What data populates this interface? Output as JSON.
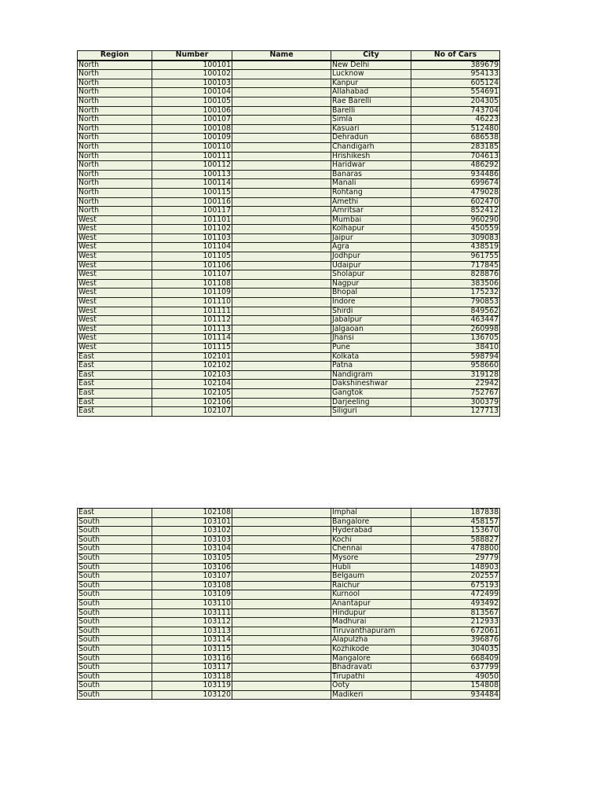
{
  "headers": [
    "Region",
    "Number",
    "Name",
    "City",
    "No of Cars"
  ],
  "table1": [
    [
      "North",
      "100101",
      "",
      "New Delhi",
      "389679"
    ],
    [
      "North",
      "100102",
      "",
      "Lucknow",
      "954133"
    ],
    [
      "North",
      "100103",
      "",
      "Kanpur",
      "605124"
    ],
    [
      "North",
      "100104",
      "",
      "Allahabad",
      "554691"
    ],
    [
      "North",
      "100105",
      "",
      "Rae Barelli",
      "204305"
    ],
    [
      "North",
      "100106",
      "",
      "Barelli",
      "743704"
    ],
    [
      "North",
      "100107",
      "",
      "Simla",
      "46223"
    ],
    [
      "North",
      "100108",
      "",
      "Kasuari",
      "512480"
    ],
    [
      "North",
      "100109",
      "",
      "Dehradun",
      "686538"
    ],
    [
      "North",
      "100110",
      "",
      "Chandigarh",
      "283185"
    ],
    [
      "North",
      "100111",
      "",
      "Hrishikesh",
      "704613"
    ],
    [
      "North",
      "100112",
      "",
      "Haridwar",
      "486292"
    ],
    [
      "North",
      "100113",
      "",
      "Banaras",
      "934486"
    ],
    [
      "North",
      "100114",
      "",
      "Manali",
      "699674"
    ],
    [
      "North",
      "100115",
      "",
      "Rohtang",
      "479028"
    ],
    [
      "North",
      "100116",
      "",
      "Amethi",
      "602470"
    ],
    [
      "North",
      "100117",
      "",
      "Amritsar",
      "852412"
    ],
    [
      "West",
      "101101",
      "",
      "Mumbai",
      "960290"
    ],
    [
      "West",
      "101102",
      "",
      "Kolhapur",
      "450559"
    ],
    [
      "West",
      "101103",
      "",
      "Jaipur",
      "309083"
    ],
    [
      "West",
      "101104",
      "",
      "Agra",
      "438519"
    ],
    [
      "West",
      "101105",
      "",
      "Jodhpur",
      "961755"
    ],
    [
      "West",
      "101106",
      "",
      "Udaipur",
      "717845"
    ],
    [
      "West",
      "101107",
      "",
      "Sholapur",
      "828876"
    ],
    [
      "West",
      "101108",
      "",
      "Nagpur",
      "383506"
    ],
    [
      "West",
      "101109",
      "",
      "Bhopal",
      "175232"
    ],
    [
      "West",
      "101110",
      "",
      "Indore",
      "790853"
    ],
    [
      "West",
      "101111",
      "",
      "Shirdi",
      "849562"
    ],
    [
      "West",
      "101112",
      "",
      "Jabalpur",
      "463447"
    ],
    [
      "West",
      "101113",
      "",
      "Jalgaoan",
      "260998"
    ],
    [
      "West",
      "101114",
      "",
      "Jhansi",
      "136705"
    ],
    [
      "West",
      "101115",
      "",
      "Pune",
      "38410"
    ],
    [
      "East",
      "102101",
      "",
      "Kolkata",
      "598794"
    ],
    [
      "East",
      "102102",
      "",
      "Patna",
      "958660"
    ],
    [
      "East",
      "102103",
      "",
      "Nandigram",
      "319128"
    ],
    [
      "East",
      "102104",
      "",
      "Dakshineshwar",
      "22942"
    ],
    [
      "East",
      "102105",
      "",
      "Gangtok",
      "752767"
    ],
    [
      "East",
      "102106",
      "",
      "Darjeeling",
      "300379"
    ],
    [
      "East",
      "102107",
      "",
      "Siliguri",
      "127713"
    ]
  ],
  "table2": [
    [
      "East",
      "102108",
      "",
      "Imphal",
      "187838"
    ],
    [
      "South",
      "103101",
      "",
      "Bangalore",
      "458157"
    ],
    [
      "South",
      "103102",
      "",
      "Hyderabad",
      "153670"
    ],
    [
      "South",
      "103103",
      "",
      "Kochi",
      "588827"
    ],
    [
      "South",
      "103104",
      "",
      "Chennai",
      "478800"
    ],
    [
      "South",
      "103105",
      "",
      "Mysore",
      "29779"
    ],
    [
      "South",
      "103106",
      "",
      "Hubli",
      "148903"
    ],
    [
      "South",
      "103107",
      "",
      "Belgaum",
      "202557"
    ],
    [
      "South",
      "103108",
      "",
      "Raichur",
      "675193"
    ],
    [
      "South",
      "103109",
      "",
      "Kurnool",
      "472499"
    ],
    [
      "South",
      "103110",
      "",
      "Anantapur",
      "493492"
    ],
    [
      "South",
      "103111",
      "",
      "Hindupur",
      "813567"
    ],
    [
      "South",
      "103112",
      "",
      "Madhurai",
      "212933"
    ],
    [
      "South",
      "103113",
      "",
      "Tiruvanthapuram",
      "672061"
    ],
    [
      "South",
      "103114",
      "",
      "Alapulzha",
      "396876"
    ],
    [
      "South",
      "103115",
      "",
      "Kozhikode",
      "304035"
    ],
    [
      "South",
      "103116",
      "",
      "Mangalore",
      "668409"
    ],
    [
      "South",
      "103117",
      "",
      "Bhadravati",
      "637799"
    ],
    [
      "South",
      "103118",
      "",
      "Tirupathi",
      "49050"
    ],
    [
      "South",
      "103119",
      "",
      "Ooty",
      "154808"
    ],
    [
      "South",
      "103120",
      "",
      "Madikeri",
      "934484"
    ]
  ],
  "colors": {
    "cell_background": "#eef3e0",
    "border": "#222222"
  }
}
